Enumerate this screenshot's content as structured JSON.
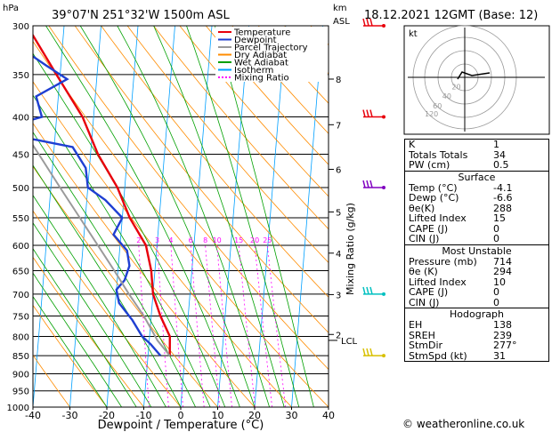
{
  "header": {
    "location": "39°07'N  251°32'W  1500m  ASL",
    "datetime": "18.12.2021  12GMT  (Base: 12)",
    "hpa_label": "hPa",
    "km_label": "km",
    "asl_label": "ASL"
  },
  "chart_data": {
    "type": "line",
    "title": "39°07'N  251°32'W  1500m  ASL",
    "xlabel": "Dewpoint / Temperature (°C)",
    "ylabel": "hPa",
    "right_label": "Mixing Ratio (g/kg)",
    "xlim": [
      -40,
      40
    ],
    "ylim": [
      1000,
      300
    ],
    "x_ticks": [
      "-40",
      "-30",
      "-20",
      "-10",
      "0",
      "10",
      "20",
      "30",
      "40"
    ],
    "pressure_levels": [
      "300",
      "350",
      "400",
      "450",
      "500",
      "550",
      "600",
      "650",
      "700",
      "750",
      "800",
      "850",
      "900",
      "950",
      "1000"
    ],
    "km_ticks": [
      {
        "km": "8",
        "p": 355
      },
      {
        "km": "7",
        "p": 410
      },
      {
        "km": "6",
        "p": 472
      },
      {
        "km": "5",
        "p": 540
      },
      {
        "km": "4",
        "p": 615
      },
      {
        "km": "3",
        "p": 701
      },
      {
        "km": "2",
        "p": 795
      }
    ],
    "lcl": {
      "label": "LCL",
      "p": 810
    },
    "mixing_ratio_labels": [
      {
        "label": "2",
        "value": 2
      },
      {
        "label": "3",
        "value": 3
      },
      {
        "label": "4",
        "value": 4
      },
      {
        "label": "6",
        "value": 6
      },
      {
        "label": "8",
        "value": 8
      },
      {
        "label": "10",
        "value": 10
      },
      {
        "label": "15",
        "value": 15
      },
      {
        "label": "20",
        "value": 20
      },
      {
        "label": "25",
        "value": 25
      }
    ],
    "legend": [
      {
        "name": "Temperature",
        "color": "#e8000b"
      },
      {
        "name": "Dewpoint",
        "color": "#1f3fd2"
      },
      {
        "name": "Parcel Trajectory",
        "color": "#9a9a9a"
      },
      {
        "name": "Dry Adiabat",
        "color": "#ff8c00"
      },
      {
        "name": "Wet Adiabat",
        "color": "#00a000"
      },
      {
        "name": "Isotherm",
        "color": "#00a0ff"
      },
      {
        "name": "Mixing Ratio",
        "color": "#ff00ff"
      }
    ],
    "series": [
      {
        "name": "Temperature",
        "color": "#e8000b",
        "points": [
          [
            850,
            -4.1
          ],
          [
            800,
            -4.5
          ],
          [
            750,
            -7.5
          ],
          [
            700,
            -10
          ],
          [
            650,
            -11
          ],
          [
            600,
            -13
          ],
          [
            550,
            -18
          ],
          [
            500,
            -22
          ],
          [
            450,
            -28
          ],
          [
            400,
            -33
          ],
          [
            350,
            -41
          ],
          [
            300,
            -50
          ]
        ]
      },
      {
        "name": "Dewpoint",
        "color": "#1f3fd2",
        "points": [
          [
            850,
            -6.6
          ],
          [
            820,
            -9.5
          ],
          [
            800,
            -12
          ],
          [
            760,
            -15
          ],
          [
            720,
            -19
          ],
          [
            690,
            -20
          ],
          [
            670,
            -18
          ],
          [
            640,
            -17
          ],
          [
            610,
            -18
          ],
          [
            580,
            -22
          ],
          [
            550,
            -20
          ],
          [
            520,
            -25
          ],
          [
            500,
            -30
          ],
          [
            470,
            -31
          ],
          [
            440,
            -35
          ],
          [
            430,
            -45
          ],
          [
            420,
            -58
          ],
          [
            400,
            -44
          ],
          [
            375,
            -46
          ],
          [
            355,
            -38
          ],
          [
            340,
            -44
          ],
          [
            320,
            -52
          ],
          [
            300,
            -63
          ]
        ]
      },
      {
        "name": "Parcel Trajectory",
        "color": "#9a9a9a",
        "points": [
          [
            850,
            -4.1
          ],
          [
            810,
            -7.8
          ],
          [
            750,
            -12
          ],
          [
            700,
            -16.5
          ],
          [
            650,
            -21
          ],
          [
            600,
            -26
          ],
          [
            550,
            -31.5
          ],
          [
            500,
            -37.5
          ],
          [
            450,
            -44
          ],
          [
            400,
            -51.5
          ],
          [
            350,
            -60
          ],
          [
            300,
            -70
          ]
        ]
      }
    ],
    "wind_barbs": [
      {
        "p": 300,
        "color": "#e8000b"
      },
      {
        "p": 400,
        "color": "#e8000b"
      },
      {
        "p": 500,
        "color": "#8000c0"
      },
      {
        "p": 700,
        "color": "#00c0c0"
      },
      {
        "p": 850,
        "color": "#d8c000"
      }
    ]
  },
  "hodograph": {
    "unit_label": "kt",
    "ring_labels": [
      "20",
      "40",
      "60",
      "120"
    ]
  },
  "indices": {
    "rows": [
      {
        "label": "K",
        "value": "1"
      },
      {
        "label": "Totals Totals",
        "value": "34"
      },
      {
        "label": "PW (cm)",
        "value": "0.5"
      }
    ]
  },
  "surface": {
    "title": "Surface",
    "rows": [
      {
        "label": "Temp (°C)",
        "value": "-4.1"
      },
      {
        "label": "Dewp (°C)",
        "value": "-6.6"
      },
      {
        "label": "θe(K)",
        "value": "288"
      },
      {
        "label": "Lifted Index",
        "value": "15"
      },
      {
        "label": "CAPE (J)",
        "value": "0"
      },
      {
        "label": "CIN (J)",
        "value": "0"
      }
    ]
  },
  "most_unstable": {
    "title": "Most Unstable",
    "rows": [
      {
        "label": "Pressure (mb)",
        "value": "714"
      },
      {
        "label": "θe (K)",
        "value": "294"
      },
      {
        "label": "Lifted Index",
        "value": "10"
      },
      {
        "label": "CAPE (J)",
        "value": "0"
      },
      {
        "label": "CIN (J)",
        "value": "0"
      }
    ]
  },
  "hodograph_table": {
    "title": "Hodograph",
    "rows": [
      {
        "label": "EH",
        "value": "138"
      },
      {
        "label": "SREH",
        "value": "239"
      },
      {
        "label": "StmDir",
        "value": "277°"
      },
      {
        "label": "StmSpd (kt)",
        "value": "31"
      }
    ]
  },
  "footer": {
    "credit": "© weatheronline.co.uk"
  }
}
